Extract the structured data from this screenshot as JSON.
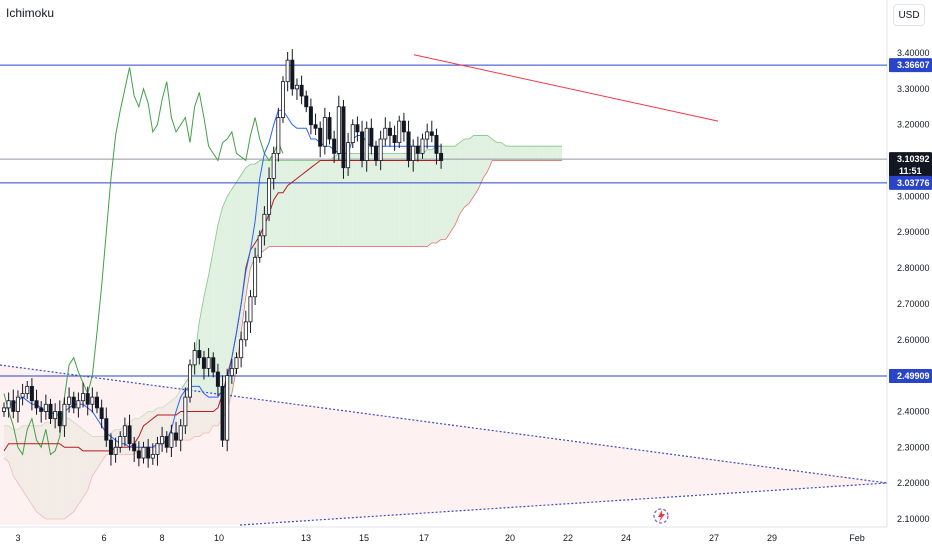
{
  "header": {
    "indicator": "Ichimoku",
    "currency": "USD"
  },
  "colors": {
    "up": "#131722",
    "down": "#131722",
    "tenkan": "#2962ff",
    "kijun": "#b71c1c",
    "chikou": "#43a047",
    "cloud_bull": "#c8e6c9",
    "cloud_bear": "#f8bbd0",
    "level_blue": "#2a44c9",
    "trend_red": "#f23645"
  },
  "chart_data": {
    "type": "candlestick",
    "title": "",
    "y_axis": {
      "ylim": [
        2.07,
        3.435
      ],
      "ticks": [
        "3.40000",
        "3.30000",
        "3.20000",
        "3.10000",
        "3.00000",
        "2.90000",
        "2.80000",
        "2.70000",
        "2.60000",
        "2.50000",
        "2.40000",
        "2.30000",
        "2.20000",
        "2.10000"
      ]
    },
    "x_axis": {
      "ticks": [
        "3",
        "6",
        "8",
        "10",
        "13",
        "15",
        "17",
        "20",
        "22",
        "24",
        "27",
        "29",
        "Feb"
      ]
    },
    "price_tags": [
      {
        "label": "3.36607",
        "value": 3.36607,
        "style": "blue"
      },
      {
        "label": "3.10392",
        "value": 3.10392,
        "style": "dark",
        "sub": "11:51"
      },
      {
        "label": "3.03776",
        "value": 3.03776,
        "style": "blue"
      },
      {
        "label": "2.49909",
        "value": 2.49909,
        "style": "blue"
      }
    ],
    "horizontal_levels": [
      3.36607,
      3.03776,
      2.49909
    ],
    "current_price": 3.10392,
    "countdown": "11:51",
    "candles_close": [
      2.41,
      2.43,
      2.4,
      2.44,
      2.45,
      2.47,
      2.43,
      2.41,
      2.4,
      2.42,
      2.38,
      2.4,
      2.36,
      2.42,
      2.44,
      2.41,
      2.43,
      2.45,
      2.42,
      2.44,
      2.41,
      2.38,
      2.32,
      2.28,
      2.3,
      2.33,
      2.36,
      2.31,
      2.29,
      2.27,
      2.3,
      2.27,
      2.28,
      2.31,
      2.33,
      2.3,
      2.34,
      2.32,
      2.36,
      2.44,
      2.53,
      2.57,
      2.55,
      2.52,
      2.55,
      2.51,
      2.47,
      2.32,
      2.5,
      2.52,
      2.55,
      2.6,
      2.65,
      2.72,
      2.83,
      2.89,
      2.95,
      3.05,
      3.12,
      3.22,
      3.32,
      3.38,
      3.3,
      3.31,
      3.28,
      3.25,
      3.2,
      3.19,
      3.14,
      3.22,
      3.16,
      3.12,
      3.25,
      3.08,
      3.15,
      3.2,
      3.18,
      3.1,
      3.19,
      3.14,
      3.1,
      3.16,
      3.19,
      3.17,
      3.15,
      3.21,
      3.18,
      3.1,
      3.14,
      3.12,
      3.16,
      3.18,
      3.17,
      3.12,
      3.1
    ],
    "tenkan": [
      2.4,
      2.42,
      2.42,
      2.43,
      2.44,
      2.43,
      2.42,
      2.42,
      2.41,
      2.4,
      2.4,
      2.39,
      2.39,
      2.4,
      2.41,
      2.42,
      2.42,
      2.42,
      2.41,
      2.4,
      2.38,
      2.36,
      2.34,
      2.33,
      2.32,
      2.31,
      2.31,
      2.3,
      2.3,
      2.3,
      2.3,
      2.3,
      2.3,
      2.31,
      2.31,
      2.32,
      2.35,
      2.4,
      2.44,
      2.46,
      2.47,
      2.47,
      2.47,
      2.45,
      2.44,
      2.44,
      2.44,
      2.46,
      2.48,
      2.55,
      2.62,
      2.7,
      2.79,
      2.85,
      2.93,
      3.05,
      3.12,
      3.15,
      3.2,
      3.24,
      3.24,
      3.22,
      3.2,
      3.19,
      3.19,
      3.19,
      3.16,
      3.16,
      3.15,
      3.14,
      3.14,
      3.13,
      3.12,
      3.12,
      3.12,
      3.16,
      3.17,
      3.17,
      3.15,
      3.14,
      3.14,
      3.14,
      3.14,
      3.14,
      3.14,
      3.14,
      3.14,
      3.14,
      3.14,
      3.14,
      3.14,
      3.14,
      3.14,
      3.14,
      3.14
    ],
    "kijun": [
      2.29,
      2.31,
      2.31,
      2.31,
      2.31,
      2.31,
      2.31,
      2.31,
      2.31,
      2.31,
      2.31,
      2.31,
      2.31,
      2.3,
      2.3,
      2.3,
      2.3,
      2.29,
      2.29,
      2.29,
      2.29,
      2.29,
      2.29,
      2.29,
      2.3,
      2.3,
      2.3,
      2.3,
      2.31,
      2.33,
      2.36,
      2.37,
      2.38,
      2.39,
      2.39,
      2.39,
      2.39,
      2.39,
      2.4,
      2.4,
      2.4,
      2.4,
      2.4,
      2.4,
      2.4,
      2.4,
      2.41,
      2.45,
      2.5,
      2.55,
      2.62,
      2.7,
      2.8,
      2.85,
      2.87,
      2.89,
      2.92,
      2.95,
      2.99,
      3.01,
      3.01,
      3.03,
      3.04,
      3.05,
      3.06,
      3.07,
      3.08,
      3.09,
      3.1,
      3.1,
      3.1,
      3.1,
      3.1,
      3.1,
      3.1,
      3.1,
      3.1,
      3.1,
      3.1,
      3.1,
      3.1,
      3.1,
      3.1,
      3.1,
      3.1,
      3.1,
      3.1,
      3.1,
      3.1,
      3.1,
      3.1,
      3.1,
      3.1,
      3.1,
      3.1
    ],
    "chikou": [
      2.45,
      2.4,
      2.36,
      2.3,
      2.28,
      2.35,
      2.38,
      2.32,
      2.3,
      2.35,
      2.28,
      2.29,
      2.33,
      2.44,
      2.53,
      2.55,
      2.51,
      2.48,
      2.45,
      2.5,
      2.62,
      2.75,
      2.9,
      3.05,
      3.17,
      3.24,
      3.3,
      3.36,
      3.28,
      3.25,
      3.3,
      3.26,
      3.18,
      3.2,
      3.27,
      3.32,
      3.22,
      3.18,
      3.2,
      3.22,
      3.15,
      3.25,
      3.29,
      3.22,
      3.14,
      3.12,
      3.1,
      3.15,
      3.16,
      3.18,
      3.12,
      3.11,
      3.1,
      3.17,
      3.22,
      3.16,
      3.12,
      3.1,
      3.12,
      3.15,
      3.12
    ],
    "senkou_a": [
      2.36,
      2.36,
      2.35,
      2.35,
      2.36,
      2.36,
      2.36,
      2.36,
      2.36,
      2.37,
      2.37,
      2.38,
      2.38,
      2.38,
      2.38,
      2.37,
      2.36,
      2.35,
      2.34,
      2.33,
      2.33,
      2.33,
      2.33,
      2.34,
      2.35,
      2.35,
      2.36,
      2.37,
      2.38,
      2.38,
      2.39,
      2.4,
      2.4,
      2.41,
      2.41,
      2.42,
      2.43,
      2.44,
      2.46,
      2.48,
      2.5,
      2.55,
      2.65,
      2.72,
      2.78,
      2.85,
      2.92,
      2.97,
      3.0,
      3.02,
      3.04,
      3.06,
      3.08,
      3.09,
      3.09,
      3.1,
      3.1,
      3.1,
      3.1,
      3.1,
      3.1,
      3.1,
      3.1,
      3.1,
      3.1,
      3.1,
      3.1,
      3.1,
      3.1,
      3.1,
      3.1,
      3.11,
      3.12,
      3.12,
      3.12,
      3.12,
      3.12,
      3.12,
      3.12,
      3.12,
      3.12,
      3.12,
      3.12,
      3.12,
      3.12,
      3.12,
      3.12,
      3.12,
      3.12,
      3.12,
      3.12,
      3.13,
      3.13,
      3.14,
      3.14,
      3.14,
      3.14,
      3.14,
      3.15,
      3.16,
      3.16,
      3.17,
      3.17,
      3.17,
      3.17,
      3.16,
      3.15,
      3.15,
      3.14,
      3.14,
      3.14,
      3.14,
      3.14,
      3.14,
      3.14,
      3.14,
      3.14,
      3.14,
      3.14,
      3.14,
      3.14
    ],
    "senkou_b": [
      2.27,
      2.26,
      2.22,
      2.2,
      2.18,
      2.16,
      2.14,
      2.12,
      2.11,
      2.1,
      2.1,
      2.1,
      2.1,
      2.1,
      2.11,
      2.12,
      2.14,
      2.16,
      2.18,
      2.22,
      2.24,
      2.26,
      2.28,
      2.28,
      2.28,
      2.28,
      2.28,
      2.28,
      2.28,
      2.29,
      2.3,
      2.3,
      2.3,
      2.3,
      2.31,
      2.32,
      2.32,
      2.32,
      2.32,
      2.32,
      2.32,
      2.33,
      2.33,
      2.34,
      2.34,
      2.36,
      2.36,
      2.38,
      2.4,
      2.45,
      2.52,
      2.62,
      2.72,
      2.8,
      2.83,
      2.84,
      2.85,
      2.86,
      2.86,
      2.86,
      2.86,
      2.86,
      2.86,
      2.86,
      2.86,
      2.86,
      2.86,
      2.86,
      2.86,
      2.86,
      2.86,
      2.86,
      2.86,
      2.86,
      2.86,
      2.86,
      2.86,
      2.86,
      2.86,
      2.86,
      2.86,
      2.86,
      2.86,
      2.86,
      2.86,
      2.86,
      2.86,
      2.86,
      2.86,
      2.86,
      2.86,
      2.86,
      2.87,
      2.87,
      2.88,
      2.88,
      2.9,
      2.92,
      2.95,
      2.97,
      2.98,
      3.0,
      3.02,
      3.05,
      3.07,
      3.1,
      3.1,
      3.1,
      3.1,
      3.1,
      3.1,
      3.1,
      3.1,
      3.1,
      3.1,
      3.1,
      3.1,
      3.1,
      3.1,
      3.1,
      3.1
    ]
  }
}
